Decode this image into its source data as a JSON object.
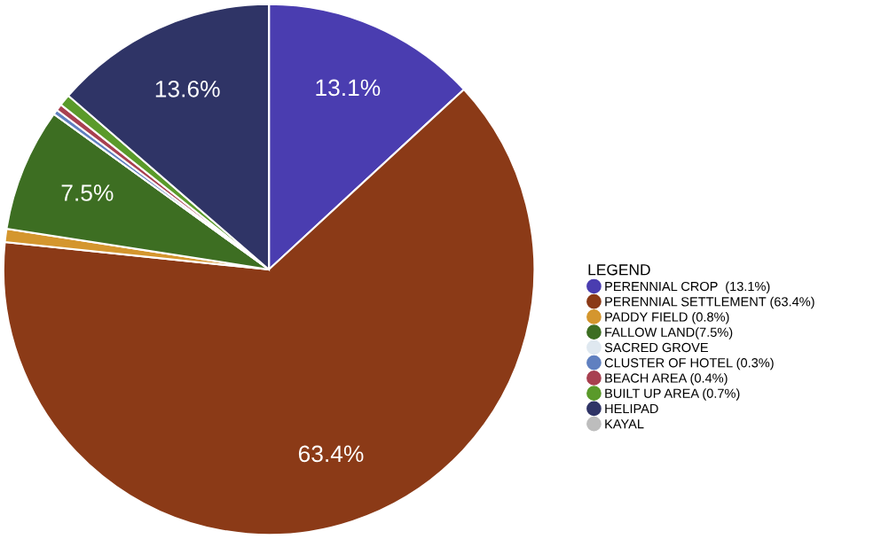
{
  "chart_data": {
    "type": "pie",
    "categories": [
      "PERENNIAL CROP  (13.1%)",
      "PERENNIAL SETTLEMENT (63.4%)",
      "PADDY FIELD (0.8%)",
      "FALLOW LAND(7.5%)",
      "SACRED GROVE",
      "CLUSTER OF HOTEL (0.3%)",
      "BEACH AREA (0.4%)",
      "BUILT UP AREA (0.7%)",
      "HELIPAD",
      "KAYAL"
    ],
    "values": [
      13.1,
      63.4,
      0.8,
      7.5,
      null,
      0.3,
      0.4,
      0.7,
      13.6,
      null
    ],
    "colors": [
      "#4a3db0",
      "#8b3a17",
      "#d4962e",
      "#3d6e22",
      "#dfe8f0",
      "#6080c0",
      "#a84050",
      "#5a9a2a",
      "#2f3466",
      "#bdbdbd"
    ],
    "value_labels": [
      "13.1%",
      "63.4%",
      null,
      "7.5%",
      null,
      null,
      null,
      null,
      "13.6%",
      null
    ],
    "legend_title": "LEGEND",
    "legend": "right"
  }
}
